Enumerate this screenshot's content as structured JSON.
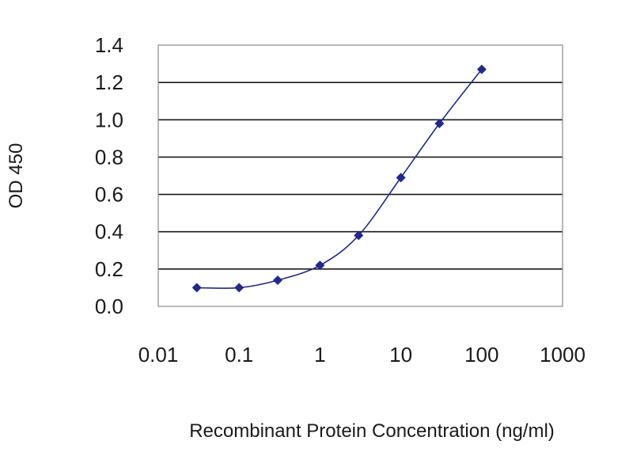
{
  "chart_data": {
    "type": "line",
    "title": "",
    "xlabel": "Recombinant Protein Concentration (ng/ml)",
    "ylabel": "OD 450",
    "xscale": "log",
    "xlim": [
      0.01,
      1000
    ],
    "ylim": [
      0.0,
      1.4
    ],
    "xticks": [
      "0.01",
      "0.1",
      "1",
      "10",
      "100",
      "1000"
    ],
    "yticks": [
      "0.0",
      "0.2",
      "0.4",
      "0.6",
      "0.8",
      "1.0",
      "1.2",
      "1.4"
    ],
    "grid": "horizontal",
    "legend": "none",
    "colors": {
      "series": "#1f2a8c",
      "grid": "#1a1a1a",
      "frame": "#8a8a8a"
    },
    "series": [
      {
        "x": [
          0.03,
          0.1,
          0.3,
          1,
          3,
          10,
          30,
          100
        ],
        "y": [
          0.1,
          0.1,
          0.14,
          0.22,
          0.38,
          0.69,
          0.98,
          1.27
        ]
      }
    ]
  }
}
